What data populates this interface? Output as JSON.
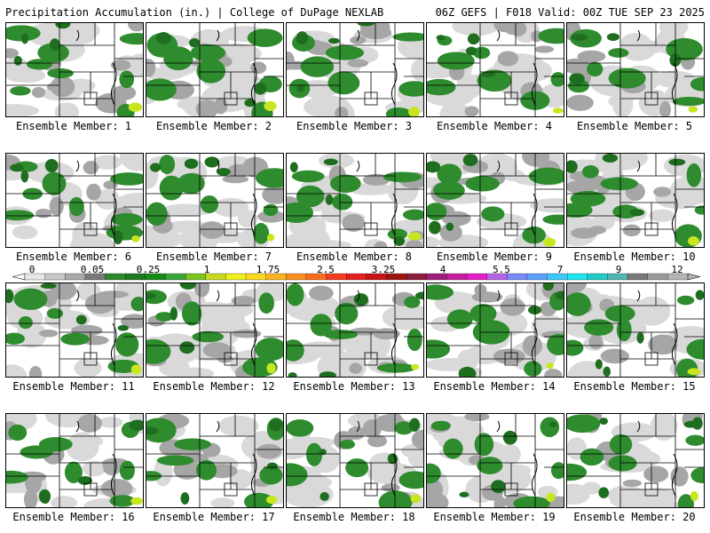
{
  "header": {
    "left_title": "Precipitation Accumulation (in.) | College of DuPage NEXLAB",
    "right_title": "06Z GEFS | F018 Valid: 00Z TUE SEP 23 2025"
  },
  "panels": [
    {
      "label": "Ensemble Member: 1"
    },
    {
      "label": "Ensemble Member: 2"
    },
    {
      "label": "Ensemble Member: 3"
    },
    {
      "label": "Ensemble Member: 4"
    },
    {
      "label": "Ensemble Member: 5"
    },
    {
      "label": "Ensemble Member: 6"
    },
    {
      "label": "Ensemble Member: 7"
    },
    {
      "label": "Ensemble Member: 8"
    },
    {
      "label": "Ensemble Member: 9"
    },
    {
      "label": "Ensemble Member: 10"
    },
    {
      "label": "Ensemble Member: 11"
    },
    {
      "label": "Ensemble Member: 12"
    },
    {
      "label": "Ensemble Member: 13"
    },
    {
      "label": "Ensemble Member: 14"
    },
    {
      "label": "Ensemble Member: 15"
    },
    {
      "label": "Ensemble Member: 16"
    },
    {
      "label": "Ensemble Member: 17"
    },
    {
      "label": "Ensemble Member: 18"
    },
    {
      "label": "Ensemble Member: 19"
    },
    {
      "label": "Ensemble Member: 20"
    }
  ],
  "colorbar": {
    "tick_labels": [
      "0",
      "0.05",
      "0.25",
      "1",
      "1.75",
      "2.5",
      "3.25",
      "4",
      "5.5",
      "7",
      "9",
      "12"
    ],
    "colors": [
      "#e6e6e6",
      "#c8c8c8",
      "#aaaaaa",
      "#7a7a7a",
      "#2a8a2a",
      "#1e7a1e",
      "#168a16",
      "#3aa43a",
      "#7cc41e",
      "#c8d81e",
      "#f0f01e",
      "#fcd81e",
      "#fcb41e",
      "#fc901e",
      "#fc6c1e",
      "#f43c1e",
      "#e61e1e",
      "#c81414",
      "#a01414",
      "#8a1e3c",
      "#a01e7a",
      "#c81ea0",
      "#e61ec8",
      "#b464e6",
      "#7a8afc",
      "#5aa0fc",
      "#3cc8fc",
      "#1ee6f0",
      "#1ecdc8",
      "#50b4b4",
      "#7a7a7a",
      "#9a9a9a",
      "#b4b4b4"
    ],
    "precip_colors": {
      "light": "#d9d9d9",
      "mid": "#a6a6a6",
      "dark": "#7f7f7f",
      "green": "#2e8b2e",
      "darkgreen": "#1f6e1f",
      "yellow": "#c8e61e"
    }
  }
}
